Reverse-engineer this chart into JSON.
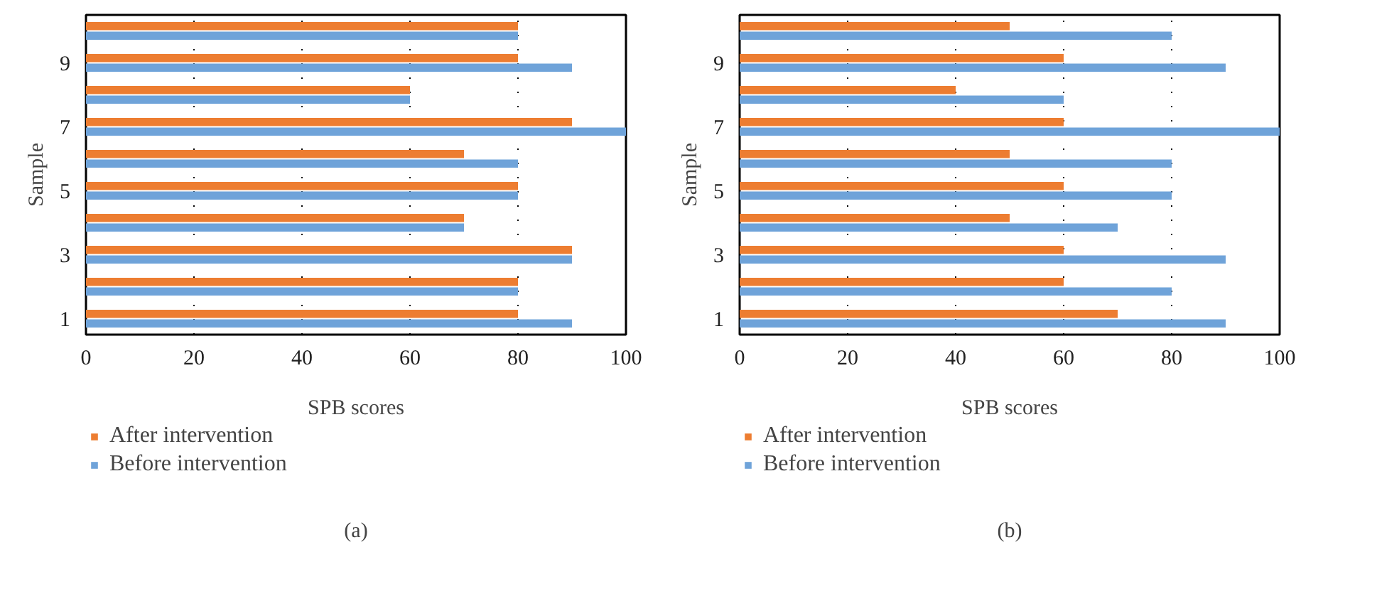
{
  "chart_data": [
    {
      "type": "bar",
      "orientation": "horizontal",
      "ylabel": "Sample",
      "xlabel": "SPB scores",
      "categories": [
        null,
        "9",
        null,
        "7",
        null,
        "5",
        null,
        "3",
        null,
        "1"
      ],
      "series": [
        {
          "name": "After intervention",
          "color": "#ed7d31",
          "values": [
            80,
            80,
            60,
            90,
            70,
            80,
            70,
            90,
            80,
            80
          ]
        },
        {
          "name": "Before intervention",
          "color": "#6fa3d9",
          "values": [
            80,
            90,
            60,
            100,
            80,
            80,
            70,
            90,
            80,
            90
          ]
        }
      ],
      "xlim": [
        0,
        100
      ],
      "xticks": [
        0,
        20,
        40,
        60,
        80,
        100
      ],
      "grid": "x",
      "legend": "bottom",
      "annotations": [
        "(a)"
      ]
    },
    {
      "type": "bar",
      "orientation": "horizontal",
      "ylabel": "Sample",
      "xlabel": "SPB scores",
      "categories": [
        null,
        "9",
        null,
        "7",
        null,
        "5",
        null,
        "3",
        null,
        "1"
      ],
      "series": [
        {
          "name": "After intervention",
          "color": "#ed7d31",
          "values": [
            50,
            60,
            40,
            60,
            50,
            60,
            50,
            60,
            60,
            70
          ]
        },
        {
          "name": "Before intervention",
          "color": "#6fa3d9",
          "values": [
            80,
            90,
            60,
            100,
            80,
            80,
            70,
            90,
            80,
            90
          ]
        }
      ],
      "xlim": [
        0,
        100
      ],
      "xticks": [
        0,
        20,
        40,
        60,
        80,
        100
      ],
      "grid": "x",
      "legend": "bottom",
      "annotations": [
        "(b)"
      ]
    }
  ]
}
